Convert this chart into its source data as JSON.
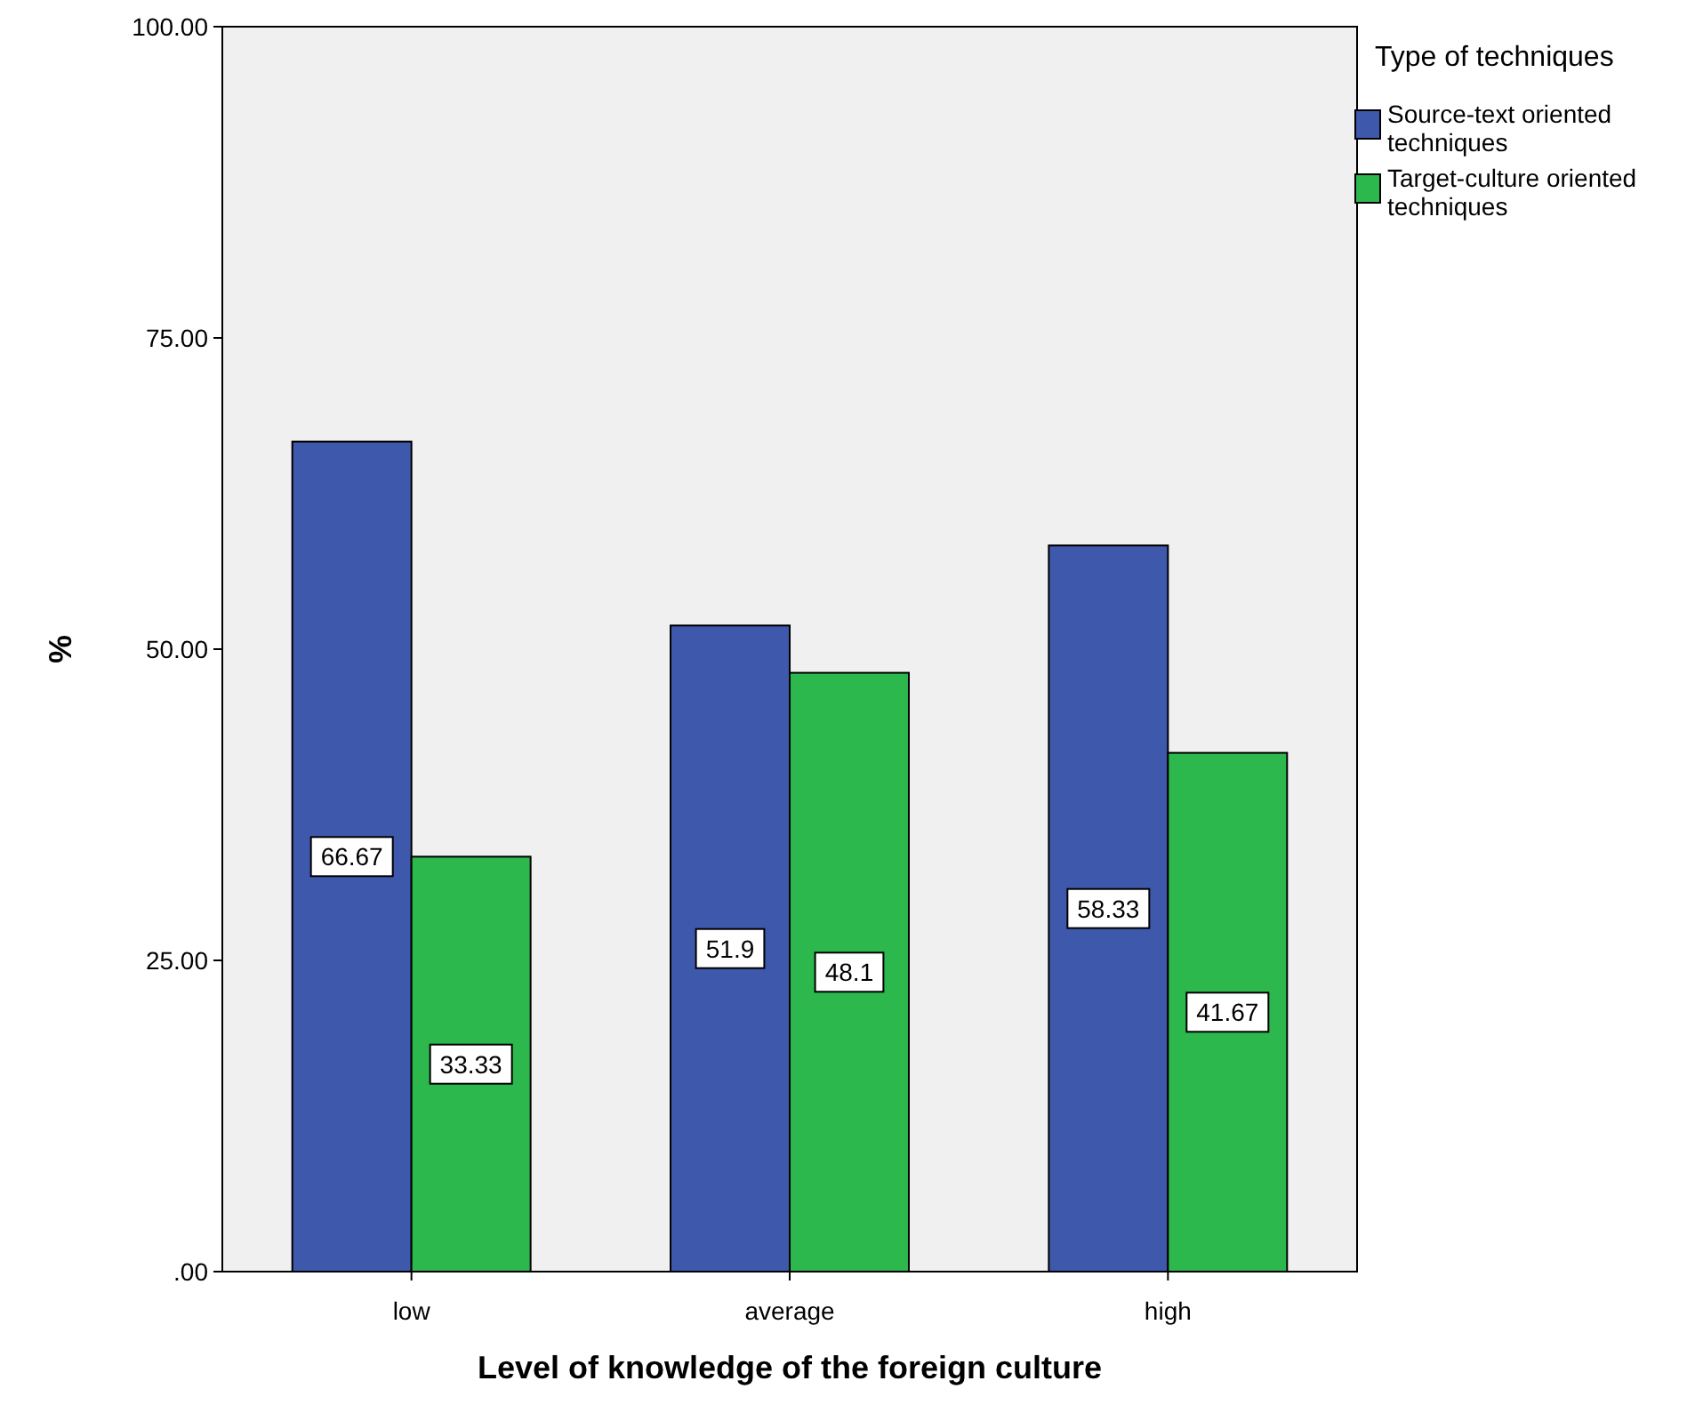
{
  "chart_data": {
    "type": "bar",
    "xlabel": "Level of knowledge of the foreign culture",
    "ylabel": "%",
    "legend_title": "Type of techniques",
    "categories": [
      "low",
      "average",
      "high"
    ],
    "series": [
      {
        "name": "Source-text oriented techniques",
        "color": "#3e58ac",
        "values": [
          66.67,
          51.9,
          58.33
        ]
      },
      {
        "name": "Target-culture oriented techniques",
        "color": "#2db84d",
        "values": [
          33.33,
          48.1,
          41.67
        ]
      }
    ],
    "ylim": [
      0,
      100
    ],
    "yticks": [
      {
        "value": 0,
        "label": ".00"
      },
      {
        "value": 25,
        "label": "25.00"
      },
      {
        "value": 50,
        "label": "50.00"
      },
      {
        "value": 75,
        "label": "75.00"
      },
      {
        "value": 100,
        "label": "100.00"
      }
    ],
    "data_labels": true,
    "legend": "top right",
    "grid": false
  }
}
